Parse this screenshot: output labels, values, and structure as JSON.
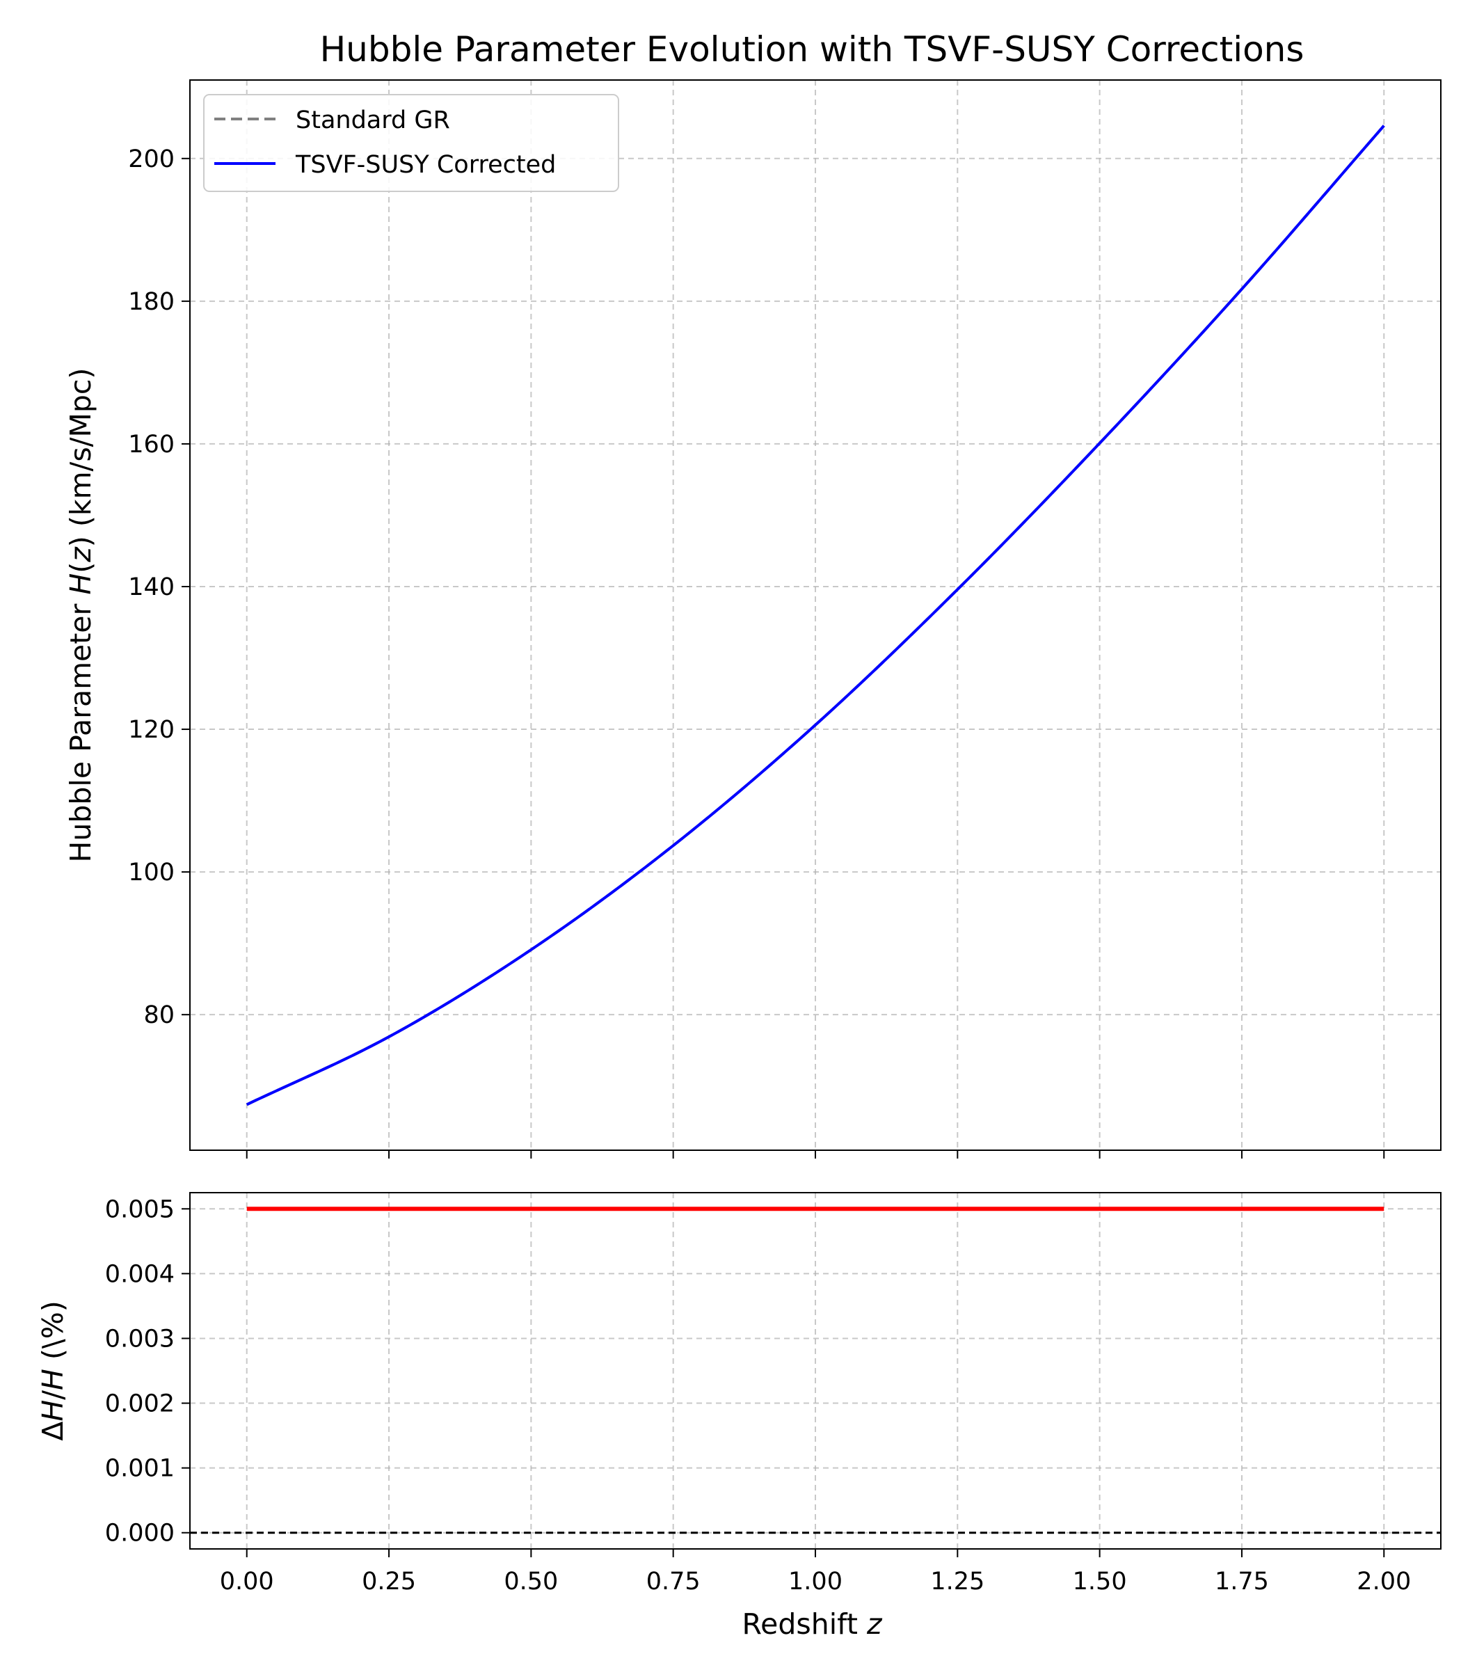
{
  "chart_data": [
    {
      "type": "line",
      "title": "Hubble Parameter Evolution with TSVF-SUSY Corrections",
      "xlabel": "",
      "ylabel": "Hubble Parameter H(z) (km/s/Mpc)",
      "ylabel_parts": {
        "before": "Hubble Parameter ",
        "math": "H",
        "paren_open": "(",
        "math_var": "z",
        "after": ") (km/s/Mpc)"
      },
      "xlim": [
        -0.1,
        2.1
      ],
      "ylim": [
        61.0,
        211.0
      ],
      "xticks": [
        0.0,
        0.25,
        0.5,
        0.75,
        1.0,
        1.25,
        1.5,
        1.75,
        2.0
      ],
      "yticks": [
        80,
        100,
        120,
        140,
        160,
        180,
        200
      ],
      "ytick_labels": [
        "80",
        "100",
        "120",
        "140",
        "160",
        "180",
        "200"
      ],
      "grid": true,
      "legend_position": "upper-left",
      "series": [
        {
          "name": "Standard GR",
          "style": "dashed",
          "color": "#808080",
          "x": [
            0.0,
            0.25,
            0.5,
            0.75,
            1.0,
            1.25,
            1.5,
            1.75,
            2.0
          ],
          "y": [
            67.4,
            76.9,
            89.1,
            103.7,
            120.6,
            139.6,
            160.1,
            181.7,
            204.6
          ]
        },
        {
          "name": "TSVF-SUSY Corrected",
          "style": "solid",
          "color": "#0000ff",
          "x": [
            0.0,
            0.25,
            0.5,
            0.75,
            1.0,
            1.25,
            1.5,
            1.75,
            2.0
          ],
          "y": [
            67.4,
            76.9,
            89.1,
            103.7,
            120.6,
            139.6,
            160.1,
            181.7,
            204.6
          ]
        }
      ]
    },
    {
      "type": "line",
      "xlabel": "Redshift z",
      "xlabel_parts": {
        "text": "Redshift ",
        "math": "z"
      },
      "ylabel": "ΔH/H (\\%)",
      "ylabel_parts": {
        "delta": "Δ",
        "math1": "H",
        "slash": "/",
        "math2": "H",
        "after": " (\\%)"
      },
      "xlim": [
        -0.1,
        2.1
      ],
      "ylim": [
        -0.00025,
        0.00525
      ],
      "xticks": [
        0.0,
        0.25,
        0.5,
        0.75,
        1.0,
        1.25,
        1.5,
        1.75,
        2.0
      ],
      "xtick_labels": [
        "0.00",
        "0.25",
        "0.50",
        "0.75",
        "1.00",
        "1.25",
        "1.50",
        "1.75",
        "2.00"
      ],
      "yticks": [
        0.0,
        0.001,
        0.002,
        0.003,
        0.004,
        0.005
      ],
      "ytick_labels": [
        "0.000",
        "0.001",
        "0.002",
        "0.003",
        "0.004",
        "0.005"
      ],
      "grid": true,
      "series": [
        {
          "style": "solid",
          "color": "#ff0000",
          "x": [
            0.0,
            2.0
          ],
          "y": [
            0.005,
            0.005
          ]
        }
      ],
      "reference_line": {
        "y": 0.0,
        "style": "dashed",
        "color": "#000000"
      }
    }
  ]
}
